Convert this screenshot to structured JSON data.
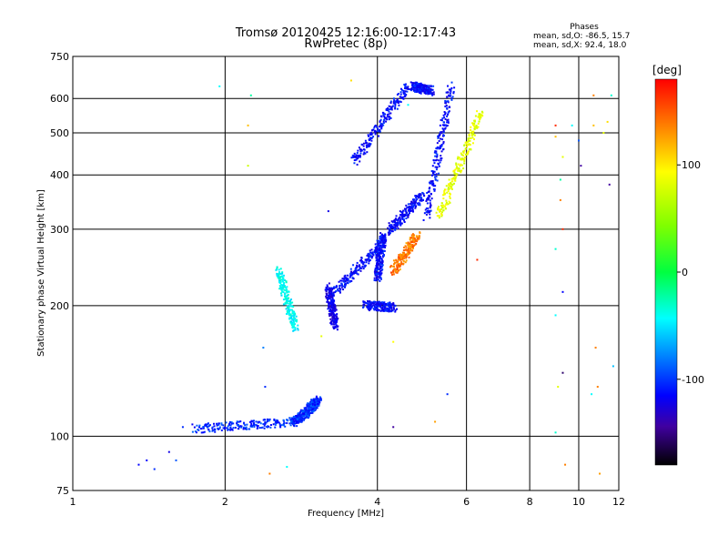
{
  "chart_data": {
    "type": "scatter",
    "title": "Tromsø 20120425 12:16:00-12:17:43",
    "subtitle": "RwPretec (8p)",
    "phases_box": {
      "title": "Phases",
      "line1": "mean, sd,O: -86.5, 15.7",
      "line2": "mean, sd,X:  92.4, 18.0"
    },
    "xlabel": "Frequency [MHz]",
    "ylabel": "Stationary phase Virtual Height [km]",
    "xscale": "log",
    "yscale": "log",
    "xlim": [
      1,
      12
    ],
    "ylim": [
      75,
      750
    ],
    "xticks": [
      1,
      2,
      4,
      6,
      8,
      10,
      12
    ],
    "yticks": [
      75,
      100,
      200,
      300,
      400,
      500,
      600,
      750
    ],
    "grid": true,
    "colorbar": {
      "label": "[deg]",
      "range": [
        -180,
        180
      ],
      "ticks": [
        100,
        0,
        -100
      ]
    },
    "traces": [
      {
        "x_start": 1.75,
        "x_end": 2.75,
        "y_start": 104,
        "y_end": 108,
        "phase": -100
      },
      {
        "x_start": 2.75,
        "x_end": 2.95,
        "y_start": 108,
        "y_end": 116,
        "phase": -100
      },
      {
        "x_start": 2.95,
        "x_end": 3.05,
        "y_start": 116,
        "y_end": 121,
        "phase": -100
      },
      {
        "x_start": 2.55,
        "x_end": 2.75,
        "y_start": 240,
        "y_end": 178,
        "phase": -40
      },
      {
        "x_start": 3.2,
        "x_end": 3.3,
        "y_start": 220,
        "y_end": 180,
        "phase": -120
      },
      {
        "x_start": 3.3,
        "x_end": 4.1,
        "y_start": 215,
        "y_end": 280,
        "phase": -110
      },
      {
        "x_start": 3.8,
        "x_end": 4.3,
        "y_start": 200,
        "y_end": 198,
        "phase": -110
      },
      {
        "x_start": 4.0,
        "x_end": 4.1,
        "y_start": 230,
        "y_end": 290,
        "phase": -110
      },
      {
        "x_start": 4.2,
        "x_end": 4.9,
        "y_start": 295,
        "y_end": 360,
        "phase": -110
      },
      {
        "x_start": 3.6,
        "x_end": 4.6,
        "y_start": 430,
        "y_end": 640,
        "phase": -110
      },
      {
        "x_start": 4.7,
        "x_end": 5.1,
        "y_start": 640,
        "y_end": 625,
        "phase": -110
      },
      {
        "x_start": 5.0,
        "x_end": 5.6,
        "y_start": 320,
        "y_end": 640,
        "phase": -110
      },
      {
        "x_start": 4.3,
        "x_end": 4.8,
        "y_start": 240,
        "y_end": 290,
        "phase": 150
      },
      {
        "x_start": 5.3,
        "x_end": 6.4,
        "y_start": 320,
        "y_end": 560,
        "phase": 100
      }
    ],
    "scatter_points": [
      {
        "x": 1.35,
        "y": 86,
        "phase": -110
      },
      {
        "x": 1.4,
        "y": 88,
        "phase": -110
      },
      {
        "x": 1.45,
        "y": 84,
        "phase": -100
      },
      {
        "x": 1.55,
        "y": 92,
        "phase": -120
      },
      {
        "x": 1.6,
        "y": 88,
        "phase": -90
      },
      {
        "x": 1.65,
        "y": 105,
        "phase": -100
      },
      {
        "x": 1.95,
        "y": 640,
        "phase": -40
      },
      {
        "x": 2.25,
        "y": 610,
        "phase": -20
      },
      {
        "x": 2.22,
        "y": 520,
        "phase": 130
      },
      {
        "x": 2.22,
        "y": 420,
        "phase": 90
      },
      {
        "x": 2.38,
        "y": 160,
        "phase": -80
      },
      {
        "x": 2.4,
        "y": 130,
        "phase": -100
      },
      {
        "x": 2.45,
        "y": 82,
        "phase": 150
      },
      {
        "x": 2.65,
        "y": 85,
        "phase": -40
      },
      {
        "x": 3.2,
        "y": 330,
        "phase": -120
      },
      {
        "x": 3.1,
        "y": 170,
        "phase": 100
      },
      {
        "x": 3.55,
        "y": 660,
        "phase": 120
      },
      {
        "x": 4.3,
        "y": 165,
        "phase": 110
      },
      {
        "x": 4.3,
        "y": 105,
        "phase": -150
      },
      {
        "x": 4.6,
        "y": 580,
        "phase": -40
      },
      {
        "x": 5.2,
        "y": 108,
        "phase": 140
      },
      {
        "x": 5.5,
        "y": 125,
        "phase": -100
      },
      {
        "x": 6.3,
        "y": 255,
        "phase": 170
      },
      {
        "x": 9.0,
        "y": 520,
        "phase": 170
      },
      {
        "x": 9.0,
        "y": 490,
        "phase": 130
      },
      {
        "x": 9.3,
        "y": 440,
        "phase": 100
      },
      {
        "x": 9.2,
        "y": 390,
        "phase": -20
      },
      {
        "x": 9.2,
        "y": 350,
        "phase": 150
      },
      {
        "x": 9.3,
        "y": 300,
        "phase": 170
      },
      {
        "x": 9.0,
        "y": 270,
        "phase": -30
      },
      {
        "x": 9.3,
        "y": 215,
        "phase": -110
      },
      {
        "x": 9.0,
        "y": 190,
        "phase": -40
      },
      {
        "x": 9.3,
        "y": 140,
        "phase": -160
      },
      {
        "x": 9.1,
        "y": 130,
        "phase": 100
      },
      {
        "x": 9.0,
        "y": 102,
        "phase": -30
      },
      {
        "x": 9.4,
        "y": 86,
        "phase": 150
      },
      {
        "x": 9.7,
        "y": 520,
        "phase": -40
      },
      {
        "x": 10.0,
        "y": 480,
        "phase": -90
      },
      {
        "x": 10.1,
        "y": 420,
        "phase": -150
      },
      {
        "x": 10.7,
        "y": 610,
        "phase": 150
      },
      {
        "x": 10.7,
        "y": 520,
        "phase": 130
      },
      {
        "x": 10.8,
        "y": 160,
        "phase": 150
      },
      {
        "x": 10.9,
        "y": 130,
        "phase": 150
      },
      {
        "x": 10.6,
        "y": 125,
        "phase": -40
      },
      {
        "x": 11.0,
        "y": 82,
        "phase": 140
      },
      {
        "x": 11.5,
        "y": 380,
        "phase": -150
      },
      {
        "x": 11.6,
        "y": 610,
        "phase": -30
      },
      {
        "x": 11.7,
        "y": 145,
        "phase": -60
      },
      {
        "x": 11.4,
        "y": 530,
        "phase": 120
      },
      {
        "x": 11.2,
        "y": 500,
        "phase": 100
      }
    ]
  }
}
